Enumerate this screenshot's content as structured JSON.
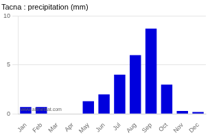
{
  "chart_data": {
    "type": "bar",
    "title": "Tacna : precipitation (mm)",
    "categories": [
      "Jan",
      "Feb",
      "Mar",
      "Apr",
      "May",
      "Jun",
      "Jul",
      "Aug",
      "Sep",
      "Oct",
      "Nov",
      "Dec"
    ],
    "values": [
      0.7,
      0.7,
      0.05,
      0.05,
      1.3,
      2.0,
      4.0,
      6.0,
      8.7,
      3.0,
      0.3,
      0.2
    ],
    "color": "#0000dd",
    "ylim": [
      0,
      10
    ],
    "yticks": [
      0,
      5,
      10
    ],
    "grid": true,
    "annotations": [
      "www.allmetsat.com"
    ]
  }
}
